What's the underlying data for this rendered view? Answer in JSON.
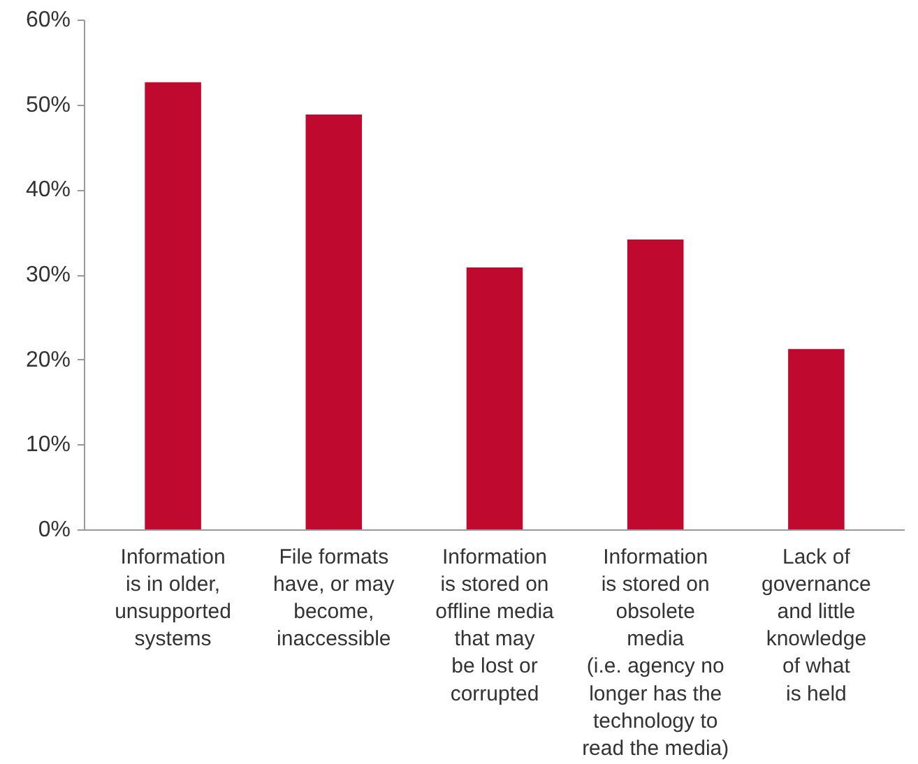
{
  "chart_data": {
    "type": "bar",
    "categories": [
      "Information\nis in older,\nunsupported\nsystems",
      "File formats\nhave, or may\nbecome,\ninaccessible",
      "Information\nis stored on\noffline media\nthat may\nbe lost or\ncorrupted",
      "Information\nis stored on\nobsolete\nmedia\n(i.e. agency no\nlonger has the\ntechnology to\nread the media)",
      "Lack of\ngovernance\nand little\nknowledge\nof what\nis held"
    ],
    "values": [
      52.7,
      48.9,
      30.9,
      34.2,
      21.3
    ],
    "color": "#c0092f",
    "ylim": [
      0,
      60
    ],
    "yticks": [
      {
        "value": 0,
        "label": "0%"
      },
      {
        "value": 10,
        "label": "10%"
      },
      {
        "value": 20,
        "label": "20%"
      },
      {
        "value": 30,
        "label": "30%"
      },
      {
        "value": 40,
        "label": "40%"
      },
      {
        "value": 50,
        "label": "50%"
      },
      {
        "value": 60,
        "label": "60%"
      }
    ],
    "grid": false
  }
}
